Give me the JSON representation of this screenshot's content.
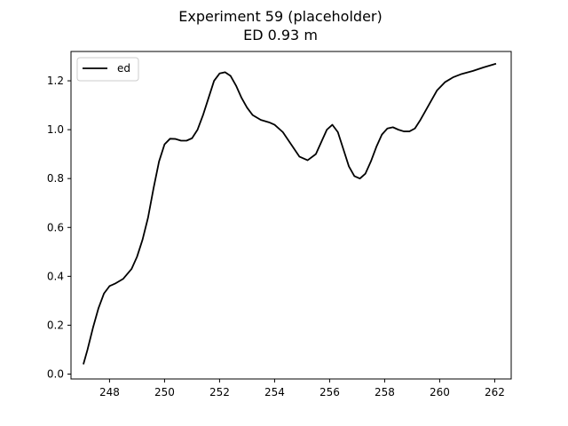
{
  "chart_data": {
    "type": "line",
    "title": "Experiment 59 (placeholder)",
    "subtitle": "ED 0.93 m",
    "xlabel": "",
    "ylabel": "",
    "xlim": [
      246.6,
      262.6
    ],
    "ylim": [
      -0.02,
      1.32
    ],
    "x_ticks": [
      248,
      250,
      252,
      254,
      256,
      258,
      260,
      262
    ],
    "y_ticks": [
      0.0,
      0.2,
      0.4,
      0.6,
      0.8,
      1.0,
      1.2
    ],
    "y_tick_labels": [
      "0.0",
      "0.2",
      "0.4",
      "0.6",
      "0.8",
      "1.0",
      "1.2"
    ],
    "grid": false,
    "legend_position": "upper-left",
    "series": [
      {
        "name": "ed",
        "color": "#000000",
        "points": [
          [
            247.05,
            0.04
          ],
          [
            247.2,
            0.1
          ],
          [
            247.4,
            0.19
          ],
          [
            247.6,
            0.27
          ],
          [
            247.8,
            0.33
          ],
          [
            248.0,
            0.36
          ],
          [
            248.2,
            0.37
          ],
          [
            248.5,
            0.39
          ],
          [
            248.8,
            0.43
          ],
          [
            249.0,
            0.48
          ],
          [
            249.2,
            0.55
          ],
          [
            249.4,
            0.64
          ],
          [
            249.6,
            0.76
          ],
          [
            249.8,
            0.87
          ],
          [
            250.0,
            0.94
          ],
          [
            250.2,
            0.963
          ],
          [
            250.4,
            0.962
          ],
          [
            250.6,
            0.955
          ],
          [
            250.8,
            0.955
          ],
          [
            251.0,
            0.965
          ],
          [
            251.2,
            1.0
          ],
          [
            251.4,
            1.06
          ],
          [
            251.6,
            1.13
          ],
          [
            251.8,
            1.2
          ],
          [
            252.0,
            1.23
          ],
          [
            252.2,
            1.235
          ],
          [
            252.4,
            1.22
          ],
          [
            252.6,
            1.18
          ],
          [
            252.8,
            1.13
          ],
          [
            253.0,
            1.09
          ],
          [
            253.2,
            1.06
          ],
          [
            253.5,
            1.04
          ],
          [
            253.8,
            1.03
          ],
          [
            254.0,
            1.02
          ],
          [
            254.3,
            0.99
          ],
          [
            254.6,
            0.94
          ],
          [
            254.9,
            0.89
          ],
          [
            255.2,
            0.875
          ],
          [
            255.5,
            0.9
          ],
          [
            255.7,
            0.95
          ],
          [
            255.9,
            1.0
          ],
          [
            256.1,
            1.02
          ],
          [
            256.3,
            0.99
          ],
          [
            256.5,
            0.92
          ],
          [
            256.7,
            0.85
          ],
          [
            256.9,
            0.81
          ],
          [
            257.1,
            0.8
          ],
          [
            257.3,
            0.82
          ],
          [
            257.5,
            0.87
          ],
          [
            257.7,
            0.93
          ],
          [
            257.9,
            0.98
          ],
          [
            258.1,
            1.005
          ],
          [
            258.3,
            1.01
          ],
          [
            258.5,
            1.0
          ],
          [
            258.7,
            0.993
          ],
          [
            258.9,
            0.993
          ],
          [
            259.1,
            1.005
          ],
          [
            259.3,
            1.04
          ],
          [
            259.6,
            1.1
          ],
          [
            259.9,
            1.16
          ],
          [
            260.2,
            1.195
          ],
          [
            260.5,
            1.215
          ],
          [
            260.8,
            1.228
          ],
          [
            261.2,
            1.24
          ],
          [
            261.6,
            1.255
          ],
          [
            262.05,
            1.27
          ]
        ]
      }
    ]
  }
}
